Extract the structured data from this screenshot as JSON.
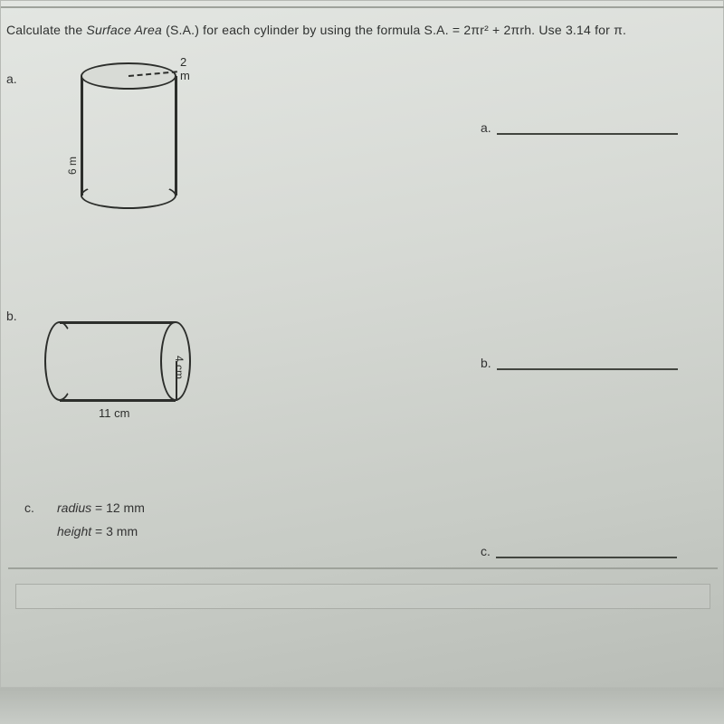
{
  "instruction": {
    "prefix": "Calculate the ",
    "italic1": "Surface Area",
    "paren": " (S.A.) for each cylinder by using the formula ",
    "formula": "S.A. = 2πr² + 2πrh.",
    "suffix": "  Use 3.14 for π."
  },
  "problems": {
    "a": {
      "letter": "a.",
      "cylinder": {
        "type": "cylinder-vertical",
        "radius_label": "2 m",
        "height_label": "6 m",
        "stroke_color": "#2c2e2b",
        "stroke_width": 2.5,
        "fill_color": "#d8dbd6"
      }
    },
    "b": {
      "letter": "b.",
      "cylinder": {
        "type": "cylinder-horizontal",
        "radius_label": "4 cm",
        "length_label": "11 cm",
        "stroke_color": "#2c2e2b",
        "stroke_width": 2.5,
        "fill_color": "#d4d8d2"
      }
    },
    "c": {
      "letter": "c.",
      "line1_label": "radius",
      "line1_value": " = 12 mm",
      "line2_label": "height",
      "line2_value": " = 3 mm"
    }
  },
  "answers": {
    "a_letter": "a.",
    "b_letter": "b.",
    "c_letter": "c."
  },
  "colors": {
    "page_bg_top": "#e3e6e2",
    "page_bg_bottom": "#b9bdb7",
    "rule": "#9ea29b",
    "text": "#2f3130",
    "blank_line": "#42453f"
  },
  "typography": {
    "body_fontsize": 14,
    "label_fontsize": 13,
    "small_fontsize": 12,
    "font_family": "Arial"
  }
}
